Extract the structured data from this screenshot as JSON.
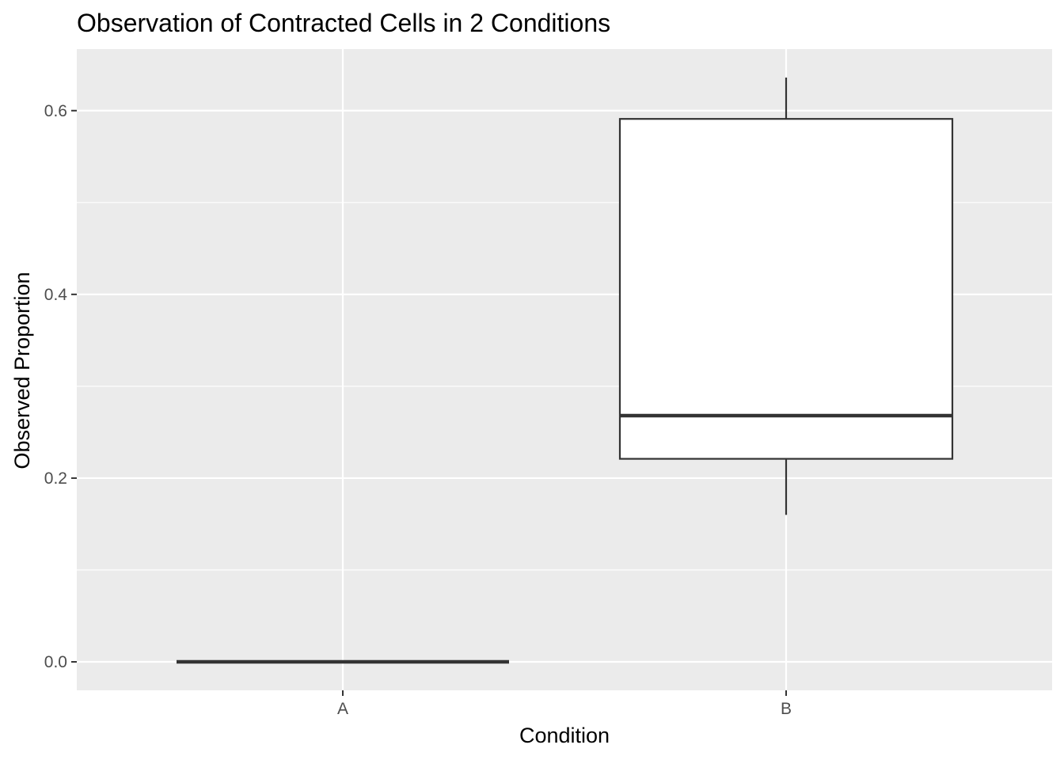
{
  "chart_data": {
    "type": "boxplot",
    "title": "Observation of Contracted Cells in 2 Conditions",
    "xlabel": "Condition",
    "ylabel": "Observed Proportion",
    "categories": [
      "A",
      "B"
    ],
    "ylim": [
      -0.031,
      0.667
    ],
    "yticks": [
      0.0,
      0.2,
      0.4,
      0.6
    ],
    "ytick_labels": [
      "0.0",
      "0.2",
      "0.4",
      "0.6"
    ],
    "grid": true,
    "legend": "none",
    "boxes": [
      {
        "category": "A",
        "min": 0.0,
        "q1": 0.0,
        "median": 0.0,
        "q3": 0.0,
        "max": 0.0
      },
      {
        "category": "B",
        "min": 0.16,
        "q1": 0.221,
        "median": 0.268,
        "q3": 0.591,
        "max": 0.636
      }
    ],
    "colors": {
      "panel": "#ebebeb",
      "grid": "#ffffff",
      "box_fill": "#ffffff",
      "box_line": "#333333",
      "tick": "#333333"
    }
  }
}
